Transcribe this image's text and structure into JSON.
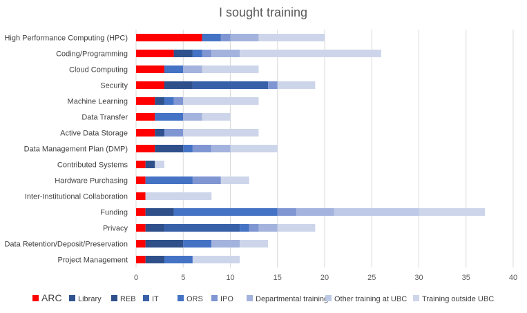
{
  "chart_data": {
    "type": "bar",
    "orientation": "horizontal",
    "stacked": true,
    "title": "I sought training",
    "xlabel": "",
    "ylabel": "",
    "xlim": [
      0,
      40
    ],
    "xticks": [
      0,
      5,
      10,
      15,
      20,
      25,
      30,
      35,
      40
    ],
    "grid": true,
    "legend_position": "bottom",
    "categories": [
      "High Performance Computing (HPC)",
      "Coding/Programming",
      "Cloud Computing",
      "Security",
      "Machine Learning",
      "Data Transfer",
      "Active Data Storage",
      "Data Management Plan (DMP)",
      "Contributed Systems",
      "Hardware Purchasing",
      "Inter-Institutional Collaboration",
      "Funding",
      "Privacy",
      "Data Retention/Deposit/Preservation",
      "Project Management"
    ],
    "series": [
      {
        "name": "ARC",
        "color": "#ff0000",
        "values": [
          7,
          4,
          3,
          3,
          2,
          2,
          2,
          2,
          1,
          1,
          1,
          1,
          1,
          1,
          1
        ]
      },
      {
        "name": "Library",
        "color": "#2f528f",
        "values": [
          0,
          2,
          0,
          0,
          1,
          0,
          1,
          0,
          0,
          0,
          0,
          0,
          0,
          0,
          0
        ]
      },
      {
        "name": "REB",
        "color": "#2e4f8a",
        "values": [
          0,
          0,
          0,
          3,
          0,
          0,
          0,
          3,
          1,
          0,
          0,
          3,
          2,
          4,
          2
        ]
      },
      {
        "name": "IT",
        "color": "#3760a9",
        "values": [
          0,
          0,
          0,
          8,
          0,
          0,
          0,
          0,
          0,
          0,
          0,
          0,
          8,
          0,
          0
        ]
      },
      {
        "name": "ORS",
        "color": "#4472c4",
        "values": [
          2,
          1,
          2,
          0,
          1,
          3,
          0,
          1,
          0,
          5,
          0,
          11,
          1,
          3,
          3
        ]
      },
      {
        "name": "IPO",
        "color": "#7f96d3",
        "values": [
          1,
          1,
          0,
          1,
          1,
          0,
          2,
          2,
          0,
          3,
          0,
          2,
          1,
          0,
          0
        ]
      },
      {
        "name": "Departmental training",
        "color": "#a3b3dd",
        "values": [
          3,
          3,
          2,
          0,
          0,
          2,
          0,
          2,
          0,
          0,
          0,
          4,
          2,
          3,
          0
        ]
      },
      {
        "name": "Other training at UBC",
        "color": "#bdc9e6",
        "values": [
          0,
          0,
          0,
          0,
          0,
          0,
          0,
          0,
          0,
          0,
          0,
          9,
          0,
          0,
          0
        ]
      },
      {
        "name": "Training outside UBC",
        "color": "#cdd5ea",
        "values": [
          7,
          15,
          6,
          4,
          8,
          3,
          8,
          5,
          1,
          3,
          7,
          7,
          4,
          3,
          5
        ]
      }
    ]
  }
}
